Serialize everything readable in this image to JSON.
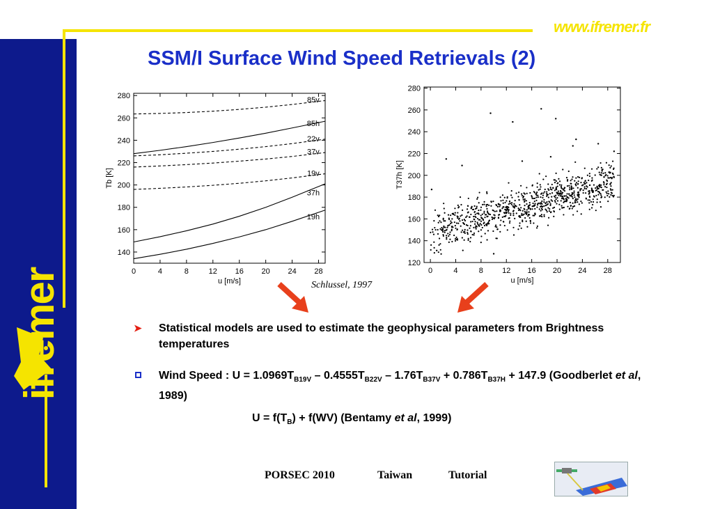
{
  "header": {
    "url": "www.ifremer.fr",
    "title": "SSM/I Surface Wind Speed Retrievals  (2)",
    "brand": "ifremer"
  },
  "citation": "Schlussel, 1997",
  "colors": {
    "title": "#1a2fc8",
    "sidebar": "#0d1a8c",
    "accent": "#f5e400",
    "arrow": "#e8401c"
  },
  "bullets": [
    {
      "marker": "arrowhead",
      "text": "Statistical models are used to estimate the geophysical  parameters from Brightness temperatures"
    },
    {
      "marker": "hollow-square",
      "pre": "Wind Speed : U = 1.0969T",
      "s1": "B19V",
      "mid1": " – 0.4555T",
      "s2": "B22V",
      "mid2": " – 1.76T",
      "s3": "B37V",
      "mid3": " + 0.786T",
      "s4": "B37H",
      "mid4": " + 147.9 (Goodberlet ",
      "ital": "et al",
      "end": ", 1989)"
    }
  ],
  "equation2": {
    "pre": "U = f(T",
    "sub": "B",
    "mid": ") + f(WV) (Bentamy ",
    "ital": "et al",
    "end": ", 1999)"
  },
  "footer": {
    "event": "PORSEC 2010",
    "place": "Taiwan",
    "kind": "Tutorial"
  },
  "chart_data": [
    {
      "type": "line",
      "xlabel": "u [m/s]",
      "ylabel": "Tb [K]",
      "xlim": [
        0,
        29
      ],
      "ylim": [
        130,
        282
      ],
      "xticks": [
        0,
        4,
        8,
        12,
        16,
        20,
        24,
        28
      ],
      "yticks": [
        140,
        160,
        180,
        200,
        220,
        240,
        260,
        280
      ],
      "x": [
        0,
        4,
        8,
        12,
        16,
        20,
        24,
        29
      ],
      "series": [
        {
          "name": "85v",
          "style": "dashed",
          "values": [
            263.5,
            264,
            264.8,
            266,
            267.6,
            269.6,
            272,
            275.5
          ]
        },
        {
          "name": "85h",
          "style": "solid",
          "values": [
            228,
            231,
            234.3,
            238,
            242,
            246.3,
            251,
            257
          ]
        },
        {
          "name": "22v",
          "style": "dashed",
          "values": [
            226,
            227,
            228.4,
            230,
            232,
            234.3,
            237,
            241
          ]
        },
        {
          "name": "37v",
          "style": "dashed",
          "values": [
            216,
            217,
            218.2,
            219.6,
            221.3,
            223.2,
            225.5,
            229
          ]
        },
        {
          "name": "19v",
          "style": "dashed",
          "values": [
            196,
            197,
            198.2,
            199.7,
            201.5,
            203.7,
            206.3,
            210
          ]
        },
        {
          "name": "37h",
          "style": "solid",
          "values": [
            149,
            153.7,
            159,
            165,
            172,
            180,
            189,
            201
          ]
        },
        {
          "name": "19h",
          "style": "solid",
          "values": [
            134,
            138,
            142.5,
            147.7,
            153.5,
            160,
            167.5,
            177.5
          ]
        }
      ]
    },
    {
      "type": "scatter",
      "xlabel": "u [m/s]",
      "ylabel": "T37h [K]",
      "xlim": [
        -1,
        30
      ],
      "ylim": [
        120,
        281
      ],
      "xticks": [
        0,
        4,
        8,
        12,
        16,
        20,
        24,
        28
      ],
      "yticks": [
        120,
        140,
        160,
        180,
        200,
        220,
        240,
        260,
        280
      ],
      "trend": {
        "x": [
          0,
          29
        ],
        "y": [
          148,
          195
        ]
      },
      "outliers": [
        [
          9.5,
          257
        ],
        [
          13,
          249
        ],
        [
          17.5,
          261
        ],
        [
          19.8,
          252
        ],
        [
          23,
          233
        ],
        [
          2.5,
          215
        ],
        [
          22.5,
          227
        ],
        [
          26.5,
          229
        ],
        [
          29,
          222
        ],
        [
          5,
          209
        ],
        [
          14.5,
          213
        ],
        [
          1,
          131
        ],
        [
          10,
          128
        ],
        [
          19,
          217
        ],
        [
          0.2,
          187
        ]
      ],
      "n_points": 900,
      "seed": 7,
      "spread": 9.5
    }
  ]
}
